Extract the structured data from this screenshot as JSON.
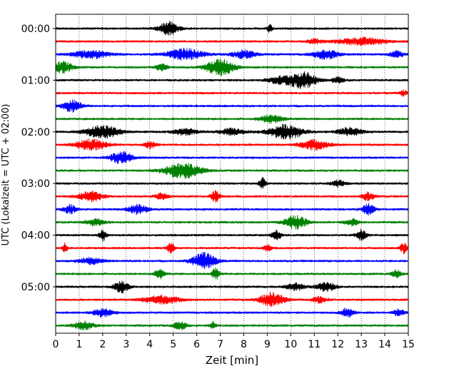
{
  "chart_data": {
    "type": "line",
    "title": "",
    "xlabel": "Zeit  [min]",
    "ylabel": "UTC (Lokalzeit = UTC + 02:00)",
    "xlim": [
      0,
      15
    ],
    "x_ticks": [
      "0",
      "1",
      "2",
      "3",
      "4",
      "5",
      "6",
      "7",
      "8",
      "9",
      "10",
      "11",
      "12",
      "13",
      "14",
      "15"
    ],
    "y_tick_labels": [
      "00:00",
      "01:00",
      "02:00",
      "03:00",
      "04:00",
      "05:00"
    ],
    "y_tick_trace_index": [
      0,
      4,
      8,
      12,
      16,
      20
    ],
    "minutes_per_trace": 15,
    "trace_colors": [
      "#000000",
      "#ff0000",
      "#0000ff",
      "#008000"
    ],
    "vertical_grid": "dotted",
    "traces": [
      {
        "start": "00:00",
        "bursts": [
          [
            4.8,
            0.8,
            0.85
          ],
          [
            9.1,
            0.2,
            0.5
          ]
        ]
      },
      {
        "start": "00:15",
        "bursts": [
          [
            11.0,
            0.6,
            0.3
          ],
          [
            13.0,
            2.0,
            0.45
          ]
        ]
      },
      {
        "start": "00:30",
        "bursts": [
          [
            1.5,
            1.5,
            0.5
          ],
          [
            5.5,
            1.5,
            0.7
          ],
          [
            8.0,
            1.0,
            0.5
          ],
          [
            11.5,
            1.0,
            0.6
          ],
          [
            14.5,
            0.5,
            0.5
          ]
        ]
      },
      {
        "start": "00:45",
        "bursts": [
          [
            0.3,
            0.8,
            0.7
          ],
          [
            4.5,
            0.5,
            0.4
          ],
          [
            7.0,
            1.2,
            1.0
          ]
        ]
      },
      {
        "start": "01:00",
        "bursts": [
          [
            9.5,
            1.0,
            0.4
          ],
          [
            10.5,
            1.2,
            1.0
          ],
          [
            12.0,
            0.5,
            0.4
          ]
        ]
      },
      {
        "start": "01:15",
        "bursts": [
          [
            14.8,
            0.3,
            0.35
          ]
        ]
      },
      {
        "start": "01:30",
        "bursts": [
          [
            0.7,
            0.8,
            0.7
          ]
        ]
      },
      {
        "start": "01:45",
        "bursts": [
          [
            9.2,
            1.0,
            0.5
          ]
        ]
      },
      {
        "start": "02:00",
        "bursts": [
          [
            2.0,
            1.4,
            0.8
          ],
          [
            5.5,
            1.0,
            0.4
          ],
          [
            7.5,
            1.0,
            0.4
          ],
          [
            9.8,
            1.4,
            0.9
          ],
          [
            12.5,
            1.0,
            0.5
          ]
        ]
      },
      {
        "start": "02:15",
        "bursts": [
          [
            1.5,
            1.2,
            0.7
          ],
          [
            4.0,
            0.5,
            0.4
          ],
          [
            11.0,
            1.2,
            0.6
          ]
        ]
      },
      {
        "start": "02:30",
        "bursts": [
          [
            2.8,
            0.9,
            0.8
          ]
        ]
      },
      {
        "start": "02:45",
        "bursts": [
          [
            5.4,
            1.5,
            1.0
          ]
        ]
      },
      {
        "start": "03:00",
        "bursts": [
          [
            8.8,
            0.3,
            0.7
          ],
          [
            12.0,
            0.6,
            0.4
          ]
        ]
      },
      {
        "start": "03:15",
        "bursts": [
          [
            1.5,
            1.0,
            0.6
          ],
          [
            4.5,
            0.5,
            0.4
          ],
          [
            6.8,
            0.4,
            0.7
          ],
          [
            13.3,
            0.5,
            0.5
          ]
        ]
      },
      {
        "start": "03:30",
        "bursts": [
          [
            0.6,
            0.5,
            0.6
          ],
          [
            3.5,
            0.8,
            0.6
          ],
          [
            13.3,
            0.5,
            0.7
          ]
        ]
      },
      {
        "start": "03:45",
        "bursts": [
          [
            1.7,
            0.8,
            0.4
          ],
          [
            10.2,
            0.9,
            0.9
          ],
          [
            12.6,
            0.6,
            0.4
          ]
        ]
      },
      {
        "start": "04:00",
        "bursts": [
          [
            2.0,
            0.3,
            0.7
          ],
          [
            9.4,
            0.4,
            0.6
          ],
          [
            13.0,
            0.4,
            0.7
          ]
        ]
      },
      {
        "start": "04:15",
        "bursts": [
          [
            0.4,
            0.2,
            0.6
          ],
          [
            4.9,
            0.3,
            0.6
          ],
          [
            9.0,
            0.3,
            0.5
          ],
          [
            14.8,
            0.3,
            0.7
          ]
        ]
      },
      {
        "start": "04:30",
        "bursts": [
          [
            1.5,
            1.0,
            0.4
          ],
          [
            6.3,
            1.0,
            1.0
          ]
        ]
      },
      {
        "start": "04:45",
        "bursts": [
          [
            4.4,
            0.4,
            0.6
          ],
          [
            6.8,
            0.3,
            0.7
          ],
          [
            14.5,
            0.4,
            0.5
          ]
        ]
      },
      {
        "start": "05:00",
        "bursts": [
          [
            2.8,
            0.6,
            0.7
          ],
          [
            10.2,
            0.8,
            0.4
          ],
          [
            11.5,
            0.8,
            0.5
          ]
        ]
      },
      {
        "start": "05:15",
        "bursts": [
          [
            4.5,
            1.5,
            0.5
          ],
          [
            9.2,
            1.0,
            0.9
          ],
          [
            11.2,
            0.6,
            0.4
          ]
        ]
      },
      {
        "start": "05:30",
        "bursts": [
          [
            2.0,
            0.8,
            0.5
          ],
          [
            12.4,
            0.5,
            0.6
          ],
          [
            14.6,
            0.4,
            0.5
          ]
        ]
      },
      {
        "start": "05:45",
        "bursts": [
          [
            1.2,
            0.8,
            0.5
          ],
          [
            5.3,
            0.5,
            0.6
          ],
          [
            6.7,
            0.3,
            0.4
          ]
        ]
      }
    ]
  }
}
